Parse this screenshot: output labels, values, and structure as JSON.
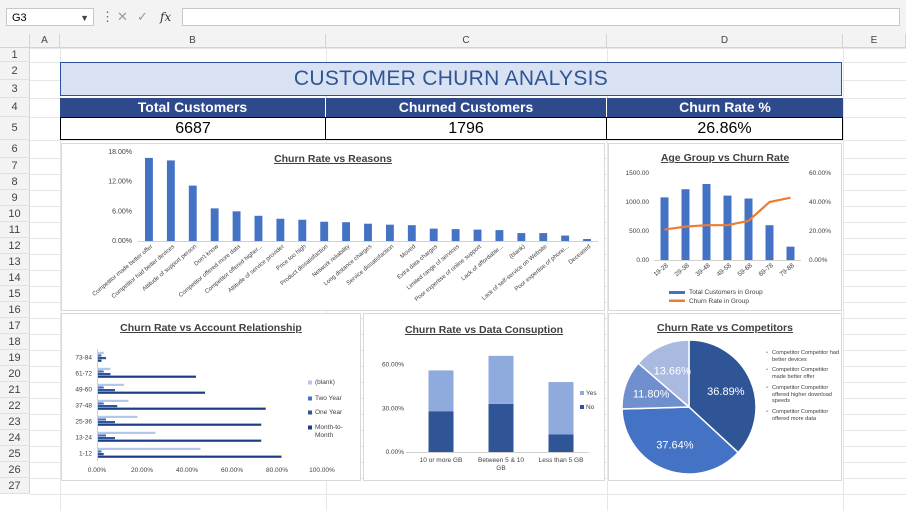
{
  "formula_bar": {
    "name_box": "G3",
    "fx_label": "fx",
    "formula": ""
  },
  "columns": [
    "A",
    "B",
    "C",
    "D",
    "E"
  ],
  "rows": [
    "1",
    "2",
    "3",
    "4",
    "5",
    "6",
    "7",
    "8",
    "9",
    "10",
    "11",
    "12",
    "13",
    "14",
    "15",
    "16",
    "17",
    "18",
    "19",
    "20",
    "21",
    "22",
    "23",
    "24",
    "25",
    "26",
    "27"
  ],
  "dashboard": {
    "title": "CUSTOMER CHURN ANALYSIS",
    "kpis": [
      {
        "label": "Total Customers",
        "value": "6687"
      },
      {
        "label": "Churned Customers",
        "value": "1796"
      },
      {
        "label": "Churn Rate %",
        "value": "26.86%"
      }
    ]
  },
  "colors": {
    "blue": "#4472c4",
    "dark_blue": "#2f5597",
    "light_blue": "#8faadc",
    "orange": "#ed7d31",
    "header_navy": "#2f4a8c"
  },
  "chart_data": [
    {
      "type": "bar",
      "title": "Churn Rate vs Reasons",
      "categories": [
        "Competitor made better offer",
        "Competitor had better devices",
        "Attitude of support person",
        "Don't know",
        "Competitor offered more data",
        "Competitor offered higher...",
        "Attitude of service provider",
        "Price too high",
        "Product dissatisfaction",
        "Network reliability",
        "Long distance charges",
        "Service dissatisfaction",
        "Moved",
        "Extra data charges",
        "Limited range of services",
        "Poor expertise of online support",
        "Lack of affordable...",
        "(blank)",
        "Lack of self-service on Website",
        "Poor expertise of phone...",
        "Deceased"
      ],
      "values": [
        16.8,
        16.3,
        11.2,
        6.6,
        6.0,
        5.1,
        4.5,
        4.3,
        3.9,
        3.8,
        3.5,
        3.3,
        3.2,
        2.5,
        2.4,
        2.3,
        2.2,
        1.6,
        1.6,
        1.1,
        0.4
      ],
      "yticks": [
        "0.00%",
        "6.00%",
        "12.00%",
        "18.00%"
      ],
      "ylim": [
        0,
        18
      ]
    },
    {
      "type": "bar",
      "title": "Age Group vs Churn Rate",
      "categories": [
        "19-28",
        "29-38",
        "39-48",
        "49-58",
        "59-68",
        "69-78",
        "79-88"
      ],
      "series": [
        {
          "name": "Total Customers in Group",
          "type": "bar",
          "values": [
            1080,
            1220,
            1310,
            1110,
            1060,
            600,
            230
          ]
        },
        {
          "name": "Churn Rate in Group",
          "type": "line",
          "axis": "secondary",
          "values": [
            21,
            23,
            24,
            24,
            27,
            40,
            43
          ]
        }
      ],
      "y_left_ticks": [
        "0.00",
        "500.00",
        "1000.00",
        "1500.00"
      ],
      "y_right_ticks": [
        "0.00%",
        "20.00%",
        "40.00%",
        "60.00%"
      ],
      "ylim_left": [
        0,
        1500
      ],
      "ylim_right": [
        0,
        60
      ]
    },
    {
      "type": "bar",
      "orientation": "horizontal",
      "title": "Churn Rate vs Account Relationship",
      "categories": [
        "73-84",
        "61-72",
        "49-60",
        "37-48",
        "25-36",
        "13-24",
        "1-12"
      ],
      "series": [
        {
          "name": "(blank)",
          "values": [
            3,
            6,
            12,
            14,
            18,
            26,
            46
          ]
        },
        {
          "name": "Two Year",
          "values": [
            2,
            3,
            3,
            3,
            4,
            4,
            2
          ]
        },
        {
          "name": "One Year",
          "values": [
            4,
            6,
            8,
            9,
            8,
            8,
            3
          ]
        },
        {
          "name": "Month-to-Month",
          "values": [
            2,
            44,
            48,
            75,
            73,
            73,
            82
          ]
        }
      ],
      "xticks": [
        "0.00%",
        "20.00%",
        "40.00%",
        "60.00%",
        "80.00%",
        "100.00%"
      ],
      "xlim": [
        0,
        100
      ]
    },
    {
      "type": "bar",
      "stacked": true,
      "title": "Churn Rate vs Data Consuption",
      "categories": [
        "10 or more GB",
        "Between 5 & 10 GB",
        "Less than 5 GB"
      ],
      "series": [
        {
          "name": "No",
          "values": [
            28,
            33,
            12
          ]
        },
        {
          "name": "Yes",
          "values": [
            28,
            33,
            36
          ]
        }
      ],
      "yticks": [
        "0.00%",
        "30.00%",
        "60.00%"
      ],
      "ylim": [
        0,
        70
      ]
    },
    {
      "type": "pie",
      "title": "Churn Rate vs Competitors",
      "labels": [
        "Competitor Competitor had better devices",
        "Competitor Competitor made better offer",
        "Competitor Competitor offered higher download speeds",
        "Competitor Competitor offered more data"
      ],
      "values": [
        36.89,
        37.64,
        11.8,
        13.66
      ],
      "value_labels": [
        "36.89%",
        "37.64%",
        "11.80%",
        "13.66%"
      ]
    }
  ]
}
